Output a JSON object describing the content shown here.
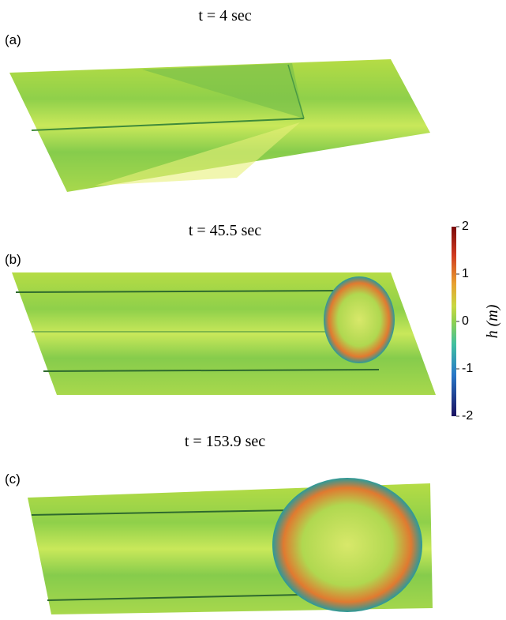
{
  "panels": [
    {
      "label": "(a)",
      "title": "t = 4 sec"
    },
    {
      "label": "(b)",
      "title": "t = 45.5 sec"
    },
    {
      "label": "(c)",
      "title": "t = 153.9 sec"
    }
  ],
  "colorbar": {
    "label": "h (m)",
    "lim": [
      -2,
      2
    ],
    "ticks": [
      -2,
      -1,
      0,
      1,
      2
    ]
  }
}
